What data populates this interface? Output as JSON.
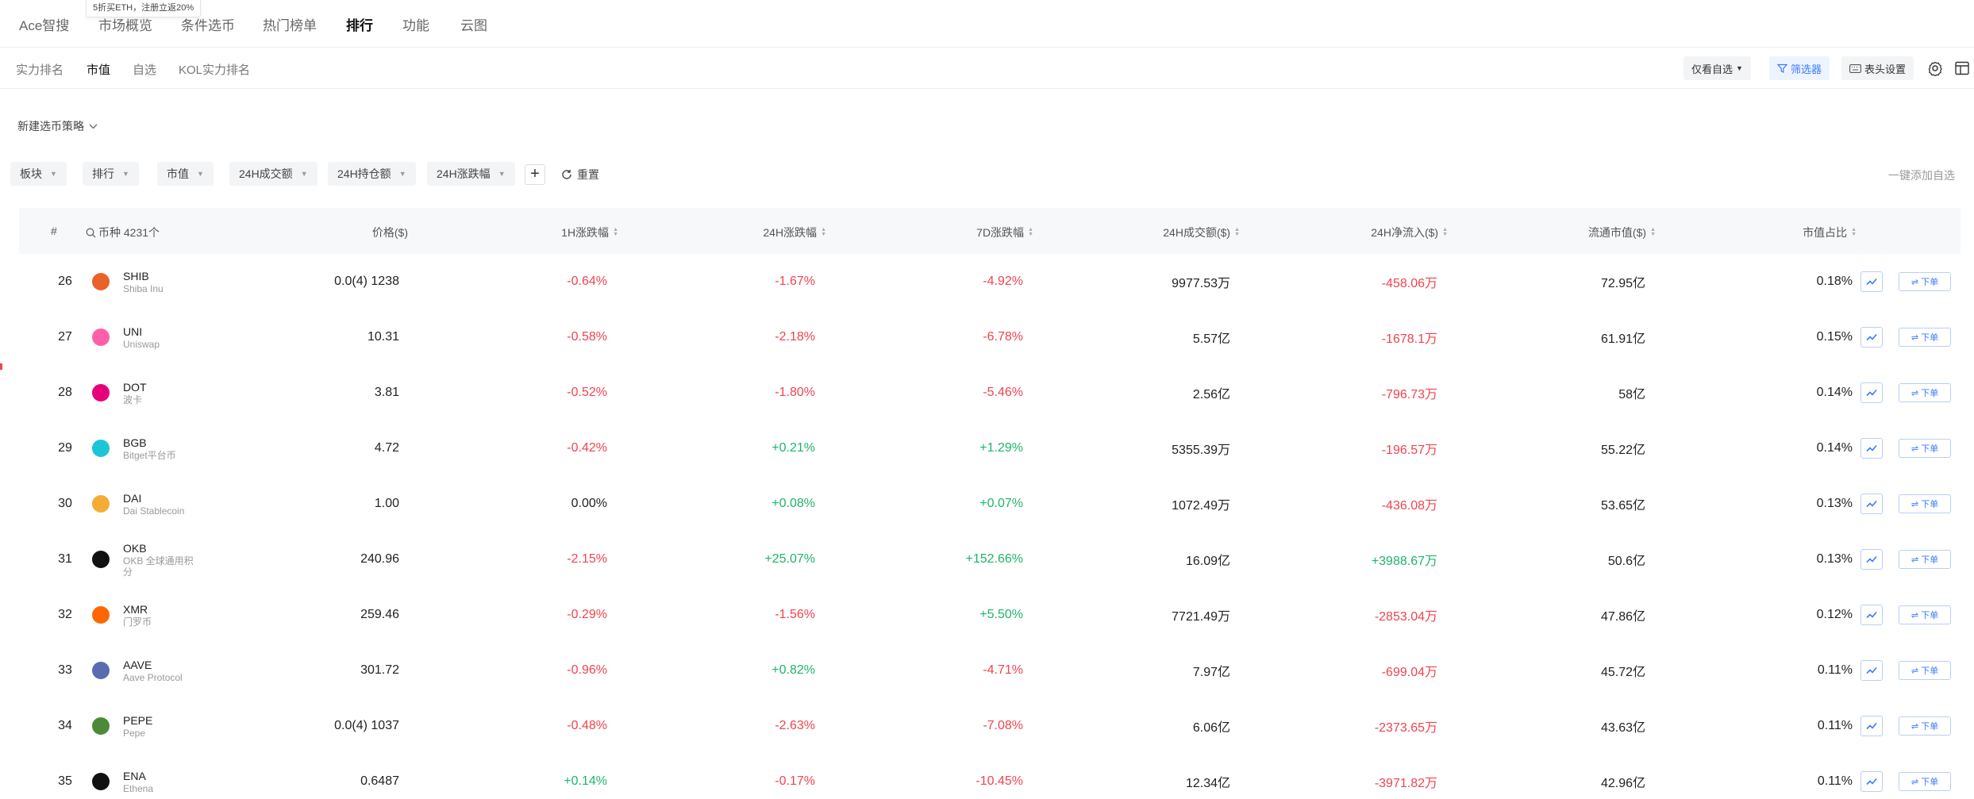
{
  "promo_text": "5折买ETH，注册立返20%",
  "top_nav": [
    "Ace智搜",
    "市场概览",
    "条件选币",
    "热门榜单",
    "排行",
    "功能",
    "云图"
  ],
  "top_nav_active": "排行",
  "sub_tabs": [
    "实力排名",
    "市值",
    "自选",
    "KOL实力排名"
  ],
  "sub_tab_active": "市值",
  "right_controls": {
    "watch_only": "仅看自选",
    "filter": "筛选器",
    "header_settings": "表头设置"
  },
  "strategy_label": "新建选币策略",
  "filters": [
    "板块",
    "排行",
    "市值",
    "24H成交额",
    "24H持仓额",
    "24H涨跌幅"
  ],
  "reset_label": "重置",
  "add_all_label": "一键添加自选",
  "table": {
    "headers": {
      "rank": "#",
      "coin": "币种 4231个",
      "price": "价格($)",
      "change_1h": "1H涨跌幅",
      "change_24h": "24H涨跌幅",
      "change_7d": "7D涨跌幅",
      "volume_24h": "24H成交额($)",
      "netflow_24h": "24H净流入($)",
      "circ_mcap": "流通市值($)",
      "mcap_share": "市值占比"
    },
    "order_label": "下单",
    "rows": [
      {
        "rank": "26",
        "symbol": "SHIB",
        "name": "Shiba Inu",
        "icon_color": "#e8622a",
        "price": "0.0(4) 1238",
        "change_1h": "-0.64%",
        "change_24h": "-1.67%",
        "change_7d": "-4.92%",
        "volume_24h": "9977.53万",
        "netflow_24h": "-458.06万",
        "circ_mcap": "72.95亿",
        "mcap_share": "0.18%"
      },
      {
        "rank": "27",
        "symbol": "UNI",
        "name": "Uniswap",
        "icon_color": "#ff5fa8",
        "price": "10.31",
        "change_1h": "-0.58%",
        "change_24h": "-2.18%",
        "change_7d": "-6.78%",
        "volume_24h": "5.57亿",
        "netflow_24h": "-1678.1万",
        "circ_mcap": "61.91亿",
        "mcap_share": "0.15%"
      },
      {
        "rank": "28",
        "symbol": "DOT",
        "name": "波卡",
        "icon_color": "#e6007a",
        "price": "3.81",
        "change_1h": "-0.52%",
        "change_24h": "-1.80%",
        "change_7d": "-5.46%",
        "volume_24h": "2.56亿",
        "netflow_24h": "-796.73万",
        "circ_mcap": "58亿",
        "mcap_share": "0.14%"
      },
      {
        "rank": "29",
        "symbol": "BGB",
        "name": "Bitget平台币",
        "icon_color": "#1cc6d6",
        "price": "4.72",
        "change_1h": "-0.42%",
        "change_24h": "+0.21%",
        "change_7d": "+1.29%",
        "volume_24h": "5355.39万",
        "netflow_24h": "-196.57万",
        "circ_mcap": "55.22亿",
        "mcap_share": "0.14%"
      },
      {
        "rank": "30",
        "symbol": "DAI",
        "name": "Dai Stablecoin",
        "icon_color": "#f5ac37",
        "price": "1.00",
        "change_1h": "0.00%",
        "change_24h": "+0.08%",
        "change_7d": "+0.07%",
        "volume_24h": "1072.49万",
        "netflow_24h": "-436.08万",
        "circ_mcap": "53.65亿",
        "mcap_share": "0.13%"
      },
      {
        "rank": "31",
        "symbol": "OKB",
        "name": "OKB 全球通用积分",
        "icon_color": "#111111",
        "price": "240.96",
        "change_1h": "-2.15%",
        "change_24h": "+25.07%",
        "change_7d": "+152.66%",
        "volume_24h": "16.09亿",
        "netflow_24h": "+3988.67万",
        "circ_mcap": "50.6亿",
        "mcap_share": "0.13%"
      },
      {
        "rank": "32",
        "symbol": "XMR",
        "name": "门罗币",
        "icon_color": "#ff6600",
        "price": "259.46",
        "change_1h": "-0.29%",
        "change_24h": "-1.56%",
        "change_7d": "+5.50%",
        "volume_24h": "7721.49万",
        "netflow_24h": "-2853.04万",
        "circ_mcap": "47.86亿",
        "mcap_share": "0.12%"
      },
      {
        "rank": "33",
        "symbol": "AAVE",
        "name": "Aave Protocol",
        "icon_color": "#5a6bb0",
        "price": "301.72",
        "change_1h": "-0.96%",
        "change_24h": "+0.82%",
        "change_7d": "-4.71%",
        "volume_24h": "7.97亿",
        "netflow_24h": "-699.04万",
        "circ_mcap": "45.72亿",
        "mcap_share": "0.11%"
      },
      {
        "rank": "34",
        "symbol": "PEPE",
        "name": "Pepe",
        "icon_color": "#4c8a3a",
        "price": "0.0(4) 1037",
        "change_1h": "-0.48%",
        "change_24h": "-2.63%",
        "change_7d": "-7.08%",
        "volume_24h": "6.06亿",
        "netflow_24h": "-2373.65万",
        "circ_mcap": "43.63亿",
        "mcap_share": "0.11%"
      },
      {
        "rank": "35",
        "symbol": "ENA",
        "name": "Ethena",
        "icon_color": "#111111",
        "price": "0.6487",
        "change_1h": "+0.14%",
        "change_24h": "-0.17%",
        "change_7d": "-10.45%",
        "volume_24h": "12.34亿",
        "netflow_24h": "-3971.82万",
        "circ_mcap": "42.96亿",
        "mcap_share": "0.11%"
      }
    ]
  },
  "colors": {
    "up": "#1fb46a",
    "down": "#f0444f",
    "accent": "#3a7bff"
  }
}
